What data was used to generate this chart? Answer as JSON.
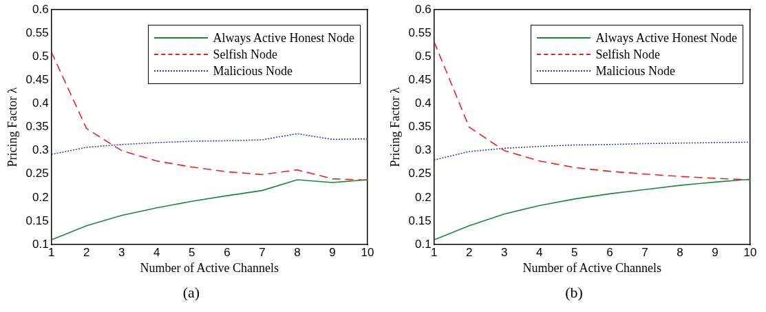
{
  "chart_data": [
    {
      "type": "line",
      "xlabel": "Number of Active Channels",
      "ylabel": "Pricing Factor λ",
      "x": [
        1,
        2,
        3,
        4,
        5,
        6,
        7,
        8,
        9,
        10
      ],
      "xlim": [
        1,
        10
      ],
      "xticks": [
        1,
        2,
        3,
        4,
        5,
        6,
        7,
        8,
        9,
        10
      ],
      "ylim": [
        0.1,
        0.6
      ],
      "yticks": [
        0.1,
        0.15,
        0.2,
        0.25,
        0.3,
        0.35,
        0.4,
        0.45,
        0.5,
        0.55,
        0.6
      ],
      "legend": "top right",
      "grid": false,
      "marker": "none",
      "annotations": [
        "(a)"
      ],
      "series": [
        {
          "name": "Always Active Honest Node",
          "color": "#1a8a3a",
          "line_style": "solid",
          "values": [
            0.11,
            0.14,
            0.162,
            0.178,
            0.192,
            0.204,
            0.215,
            0.238,
            0.232,
            0.238
          ]
        },
        {
          "name": "Selfish Node",
          "color": "#ee2020",
          "line_style": "dashed",
          "values": [
            0.51,
            0.347,
            0.3,
            0.278,
            0.265,
            0.255,
            0.249,
            0.259,
            0.24,
            0.237
          ]
        },
        {
          "name": "Malicious Node",
          "color": "#2a3fb0",
          "line_style": "dotted",
          "values": [
            0.292,
            0.307,
            0.313,
            0.317,
            0.32,
            0.321,
            0.323,
            0.336,
            0.324,
            0.325
          ]
        }
      ]
    },
    {
      "type": "line",
      "xlabel": "Number of Active Channels",
      "ylabel": "Pricing Factor λ",
      "x": [
        1,
        2,
        3,
        4,
        5,
        6,
        7,
        8,
        9,
        10
      ],
      "xlim": [
        1,
        10
      ],
      "xticks": [
        1,
        2,
        3,
        4,
        5,
        6,
        7,
        8,
        9,
        10
      ],
      "ylim": [
        0.1,
        0.6
      ],
      "yticks": [
        0.1,
        0.15,
        0.2,
        0.25,
        0.3,
        0.35,
        0.4,
        0.45,
        0.5,
        0.55,
        0.6
      ],
      "legend": "top right",
      "grid": false,
      "marker": "none",
      "annotations": [
        "(b)"
      ],
      "series": [
        {
          "name": "Always Active Honest Node",
          "color": "#1a8a3a",
          "line_style": "solid",
          "values": [
            0.11,
            0.14,
            0.165,
            0.183,
            0.197,
            0.208,
            0.217,
            0.226,
            0.233,
            0.239
          ]
        },
        {
          "name": "Selfish Node",
          "color": "#ee2020",
          "line_style": "dashed",
          "values": [
            0.532,
            0.35,
            0.3,
            0.278,
            0.264,
            0.256,
            0.25,
            0.245,
            0.241,
            0.238
          ]
        },
        {
          "name": "Malicious Node",
          "color": "#2a3fb0",
          "line_style": "dotted",
          "values": [
            0.28,
            0.298,
            0.305,
            0.309,
            0.312,
            0.313,
            0.315,
            0.316,
            0.317,
            0.318
          ]
        }
      ]
    }
  ]
}
